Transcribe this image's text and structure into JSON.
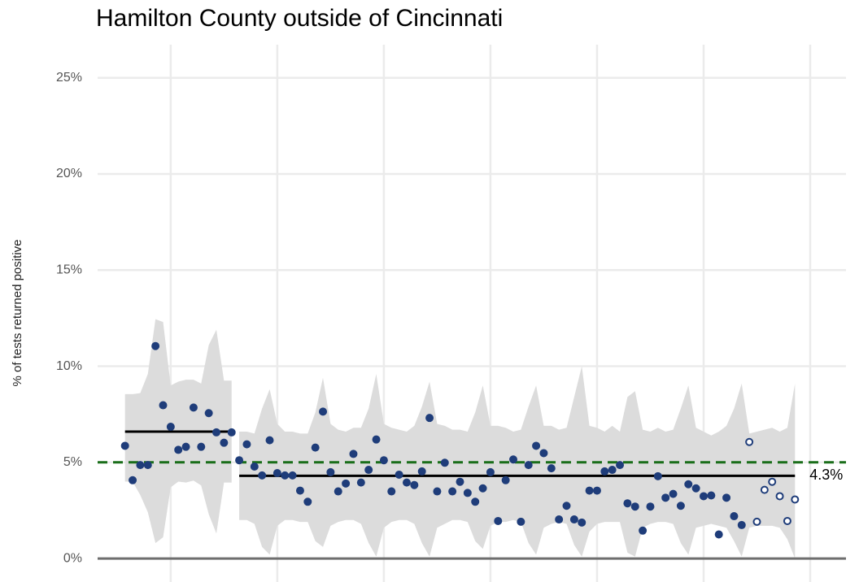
{
  "chart_data": {
    "type": "scatter",
    "title": "Hamilton County outside of Cincinnati",
    "y_label": "% of tests returned positive",
    "x": [
      0,
      1,
      2,
      3,
      4,
      5,
      6,
      7,
      8,
      9,
      10,
      11,
      12,
      13,
      14,
      15,
      16,
      17,
      18,
      19,
      20,
      21,
      22,
      23,
      24,
      25,
      26,
      27,
      28,
      29,
      30,
      31,
      32,
      33,
      34,
      35,
      36,
      37,
      38,
      39,
      40,
      41,
      42,
      43,
      44,
      45,
      46,
      47,
      48,
      49,
      50,
      51,
      52,
      53,
      54,
      55,
      56,
      57,
      58,
      59,
      60,
      61,
      62,
      63,
      64,
      65,
      66,
      67,
      68,
      69,
      70,
      71,
      72,
      73,
      74,
      75,
      76,
      77,
      78,
      79,
      80,
      81,
      82,
      83,
      84,
      85,
      86,
      87,
      88
    ],
    "series": [
      {
        "color": "#1f3d7a",
        "fill": "#1f3d7a",
        "values": [
          5.86,
          4.07,
          4.86,
          4.86,
          11.05,
          7.97,
          6.85,
          5.65,
          5.81,
          7.85,
          5.81,
          7.56,
          6.56,
          6.02,
          6.56,
          5.11,
          5.94,
          4.78,
          4.32,
          6.15,
          4.44,
          4.32,
          4.32,
          3.53,
          2.95,
          5.77,
          7.64,
          4.49,
          3.49,
          3.9,
          5.44,
          3.95,
          4.61,
          6.19,
          5.11,
          3.49,
          4.36,
          3.95,
          3.82,
          4.53,
          7.31,
          3.49,
          4.98,
          3.49,
          3.99,
          3.41,
          2.95,
          3.65,
          4.49,
          1.95,
          4.07,
          5.15,
          1.91,
          4.86,
          5.86,
          5.48,
          4.69,
          2.03,
          2.74,
          2.03,
          1.87,
          3.53,
          3.53,
          4.53,
          4.61,
          4.86,
          2.87,
          2.7,
          1.45,
          2.7,
          4.28,
          3.16,
          3.36,
          2.74,
          3.86,
          3.65,
          3.24,
          3.28,
          1.25,
          3.16,
          2.2,
          1.74,
          null,
          null,
          null,
          null,
          null,
          null,
          null
        ]
      },
      {
        "color": "#1f3d7a",
        "fill": "#ffffff",
        "values": [
          null,
          null,
          null,
          null,
          null,
          null,
          null,
          null,
          null,
          null,
          null,
          null,
          null,
          null,
          null,
          null,
          null,
          null,
          null,
          null,
          null,
          null,
          null,
          null,
          null,
          null,
          null,
          null,
          null,
          null,
          null,
          null,
          null,
          null,
          null,
          null,
          null,
          null,
          null,
          null,
          null,
          null,
          null,
          null,
          null,
          null,
          null,
          null,
          null,
          null,
          null,
          null,
          null,
          null,
          null,
          null,
          null,
          null,
          null,
          null,
          null,
          null,
          null,
          null,
          null,
          null,
          null,
          null,
          null,
          null,
          null,
          null,
          null,
          null,
          null,
          null,
          null,
          null,
          null,
          null,
          null,
          null,
          6.06,
          1.91,
          3.57,
          3.99,
          3.24,
          1.95,
          3.07
        ]
      }
    ],
    "band_upper": [
      8.55,
      8.55,
      8.6,
      9.6,
      12.45,
      12.3,
      9.0,
      9.2,
      9.3,
      9.3,
      9.1,
      11.1,
      11.9,
      9.25,
      9.25,
      6.6,
      6.6,
      6.5,
      7.8,
      8.8,
      7.0,
      6.6,
      6.6,
      6.5,
      6.5,
      7.6,
      9.4,
      7.0,
      6.7,
      6.6,
      6.8,
      6.8,
      7.8,
      9.6,
      7.0,
      6.8,
      6.7,
      6.6,
      6.9,
      7.9,
      9.2,
      7.0,
      6.9,
      6.7,
      6.7,
      6.6,
      7.6,
      9.0,
      6.9,
      6.9,
      6.8,
      6.6,
      6.7,
      7.9,
      9.0,
      6.9,
      6.9,
      6.7,
      6.8,
      8.4,
      10.0,
      6.9,
      6.8,
      6.6,
      6.9,
      6.6,
      8.4,
      8.7,
      6.7,
      6.6,
      6.8,
      6.6,
      6.7,
      7.8,
      9.0,
      6.8,
      6.6,
      6.4,
      6.6,
      6.9,
      7.8,
      9.1,
      6.5,
      6.6,
      6.7,
      6.8,
      6.6,
      6.8,
      9.1
    ],
    "band_lower": [
      4.0,
      4.0,
      3.3,
      2.4,
      0.8,
      1.1,
      3.7,
      4.0,
      3.95,
      4.05,
      3.8,
      2.3,
      1.3,
      3.95,
      3.95,
      2.0,
      2.0,
      1.8,
      0.6,
      0.2,
      1.7,
      2.0,
      2.0,
      1.9,
      1.9,
      0.9,
      0.6,
      1.7,
      1.9,
      2.0,
      2.0,
      1.8,
      0.8,
      0.1,
      1.6,
      1.9,
      2.0,
      2.0,
      1.8,
      0.8,
      0.1,
      1.6,
      1.8,
      2.0,
      2.0,
      1.9,
      0.9,
      0.5,
      1.7,
      1.9,
      1.9,
      2.0,
      1.9,
      0.8,
      0.2,
      1.6,
      1.8,
      1.9,
      1.8,
      0.7,
      0.1,
      1.4,
      1.8,
      1.9,
      1.9,
      1.9,
      0.3,
      0.1,
      1.6,
      1.8,
      1.9,
      1.9,
      1.8,
      0.8,
      0.2,
      1.6,
      1.7,
      1.8,
      1.7,
      1.6,
      0.9,
      0.1,
      1.6,
      1.7,
      1.7,
      1.7,
      1.6,
      1.0,
      0.0
    ],
    "band_color": "#dcdcdc",
    "means": [
      {
        "x": [
          0,
          14
        ],
        "value": 6.6
      },
      {
        "x": [
          15,
          88
        ],
        "value": 4.3,
        "value_label": "4.3%"
      }
    ],
    "mean_color": "#000000",
    "target": {
      "value": 5,
      "color": "#1a6e1a",
      "dashed": true
    },
    "xlim": [
      -3.6,
      94.7
    ],
    "xticks": [
      6,
      20,
      34,
      48,
      62,
      76,
      90
    ],
    "ylim": [
      -0.8,
      26.3
    ],
    "yticks": [
      {
        "value": 0,
        "label": "0%"
      },
      {
        "value": 5,
        "label": "5%"
      },
      {
        "value": 10,
        "label": "10%"
      },
      {
        "value": 15,
        "label": "15%"
      },
      {
        "value": 20,
        "label": "20%"
      },
      {
        "value": 25,
        "label": "25%"
      }
    ],
    "grid": true
  }
}
